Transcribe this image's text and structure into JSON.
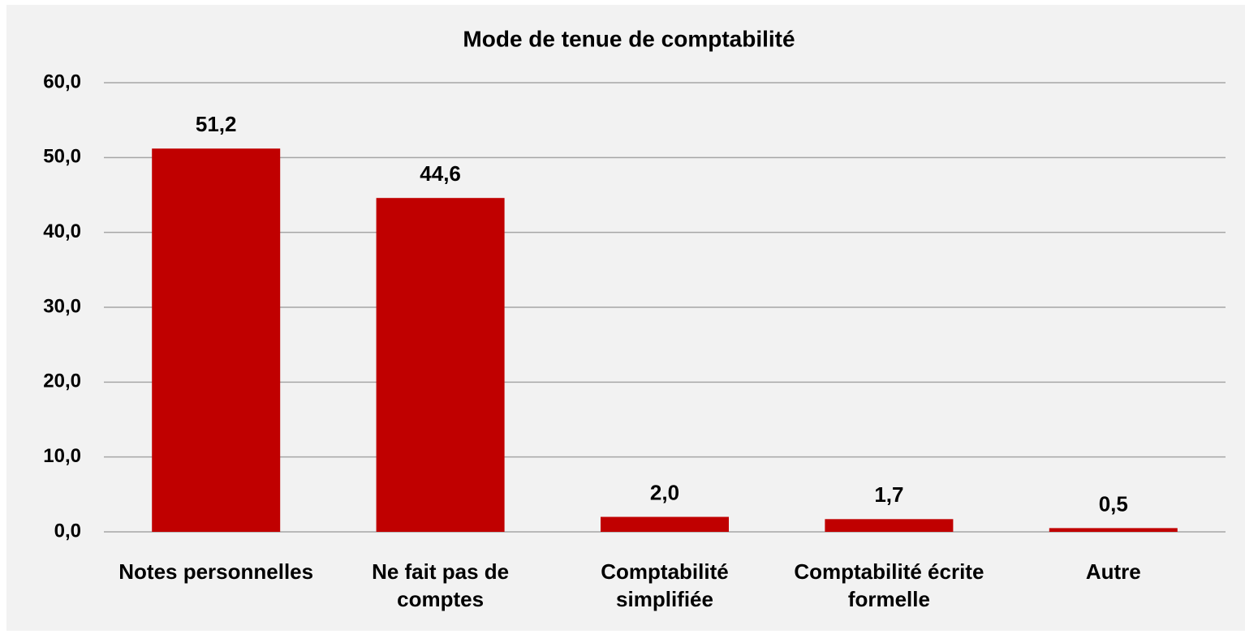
{
  "chart_data": {
    "type": "bar",
    "title": "Mode de tenue de comptabilité",
    "categories": [
      "Notes personnelles",
      "Ne fait pas de comptes",
      "Comptabilité simplifiée",
      "Comptabilité écrite formelle",
      "Autre"
    ],
    "values": [
      51.2,
      44.6,
      2.0,
      1.7,
      0.5
    ],
    "value_labels": [
      "51,2",
      "44,6",
      "2,0",
      "1,7",
      "0,5"
    ],
    "color": "#c00000",
    "ylim": [
      0,
      60
    ],
    "yticks": [
      {
        "value": 0,
        "label": "0,0"
      },
      {
        "value": 10,
        "label": "10,0"
      },
      {
        "value": 20,
        "label": "20,0"
      },
      {
        "value": 30,
        "label": "30,0"
      },
      {
        "value": 40,
        "label": "40,0"
      },
      {
        "value": 50,
        "label": "50,0"
      },
      {
        "value": 60,
        "label": "60,0"
      }
    ],
    "grid": true
  }
}
